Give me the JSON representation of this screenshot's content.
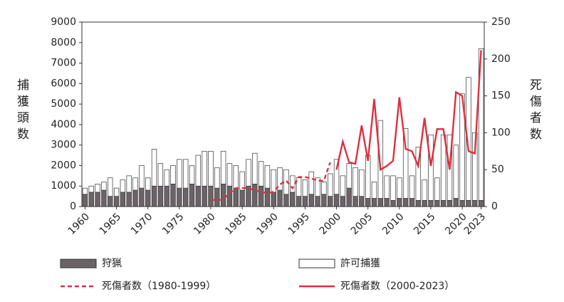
{
  "chart_data": {
    "type": "bar",
    "stacked": true,
    "y_label": "捕獲頭数",
    "y2_label": "死傷者数",
    "categories": [
      "1960",
      null,
      null,
      null,
      null,
      "1965",
      null,
      null,
      null,
      null,
      "1970",
      null,
      null,
      null,
      null,
      "1975",
      null,
      null,
      null,
      null,
      "1980",
      null,
      null,
      null,
      null,
      "1985",
      null,
      null,
      null,
      null,
      "1990",
      null,
      null,
      null,
      null,
      "1995",
      null,
      null,
      null,
      null,
      "2000",
      null,
      null,
      null,
      null,
      "2005",
      null,
      null,
      null,
      null,
      "2010",
      null,
      null,
      null,
      null,
      "2015",
      null,
      null,
      null,
      null,
      "2020",
      null,
      null,
      "2023"
    ],
    "ylim": [
      0,
      9000
    ],
    "yticks": [
      0,
      1000,
      2000,
      3000,
      4000,
      5000,
      6000,
      7000,
      8000,
      9000
    ],
    "y2lim": [
      0,
      250
    ],
    "y2ticks": [
      0,
      50,
      100,
      150,
      200,
      250
    ],
    "series": [
      {
        "name": "狩猟",
        "kind": "bar",
        "color": "#6b6368",
        "values": [
          600,
          700,
          700,
          800,
          500,
          500,
          700,
          700,
          800,
          900,
          800,
          1000,
          1000,
          1000,
          1100,
          900,
          900,
          1100,
          1000,
          1000,
          1000,
          900,
          1100,
          1000,
          900,
          800,
          1000,
          1100,
          1000,
          900,
          700,
          800,
          600,
          700,
          500,
          500,
          600,
          500,
          600,
          500,
          600,
          500,
          900,
          500,
          500,
          400,
          400,
          400,
          400,
          300,
          400,
          400,
          400,
          300,
          300,
          300,
          300,
          300,
          300,
          400,
          300,
          300,
          300,
          300
        ]
      },
      {
        "name": "許可捕獲",
        "kind": "bar",
        "color": "#ffffff",
        "values": [
          300,
          300,
          400,
          400,
          900,
          400,
          600,
          800,
          600,
          1100,
          600,
          1800,
          1100,
          800,
          900,
          1400,
          1400,
          900,
          1500,
          1700,
          1700,
          1000,
          1600,
          1100,
          1100,
          900,
          1300,
          1500,
          1200,
          1100,
          1100,
          1100,
          1200,
          800,
          900,
          800,
          1100,
          900,
          600,
          1100,
          1700,
          1000,
          1200,
          1400,
          1300,
          2100,
          800,
          3800,
          1100,
          1200,
          1000,
          3400,
          1100,
          2600,
          1000,
          3200,
          1100,
          3200,
          3200,
          2600,
          5200,
          6000,
          3300,
          7400
        ]
      },
      {
        "name": "死傷者数（1980-1999）",
        "kind": "line",
        "axis": "y2",
        "dash": true,
        "color": "#d9323f",
        "values": [
          null,
          null,
          null,
          null,
          null,
          null,
          null,
          null,
          null,
          null,
          null,
          null,
          null,
          null,
          null,
          null,
          null,
          null,
          null,
          null,
          10,
          8,
          10,
          18,
          25,
          25,
          25,
          22,
          20,
          18,
          20,
          30,
          35,
          25,
          40,
          40,
          38,
          35,
          35,
          60,
          null,
          null,
          null,
          null,
          null,
          null,
          null,
          null,
          null,
          null,
          null,
          null,
          null,
          null,
          null,
          null,
          null,
          null,
          null,
          null,
          null,
          null,
          null,
          null
        ]
      },
      {
        "name": "死傷者数（2000-2023）",
        "kind": "line",
        "axis": "y2",
        "dash": false,
        "color": "#d9323f",
        "values": [
          null,
          null,
          null,
          null,
          null,
          null,
          null,
          null,
          null,
          null,
          null,
          null,
          null,
          null,
          null,
          null,
          null,
          null,
          null,
          null,
          null,
          null,
          null,
          null,
          null,
          null,
          null,
          null,
          null,
          null,
          null,
          null,
          null,
          null,
          null,
          null,
          null,
          null,
          null,
          null,
          50,
          88,
          60,
          58,
          110,
          62,
          146,
          50,
          55,
          62,
          148,
          78,
          75,
          55,
          120,
          55,
          105,
          105,
          50,
          155,
          150,
          75,
          72,
          212
        ]
      }
    ]
  }
}
